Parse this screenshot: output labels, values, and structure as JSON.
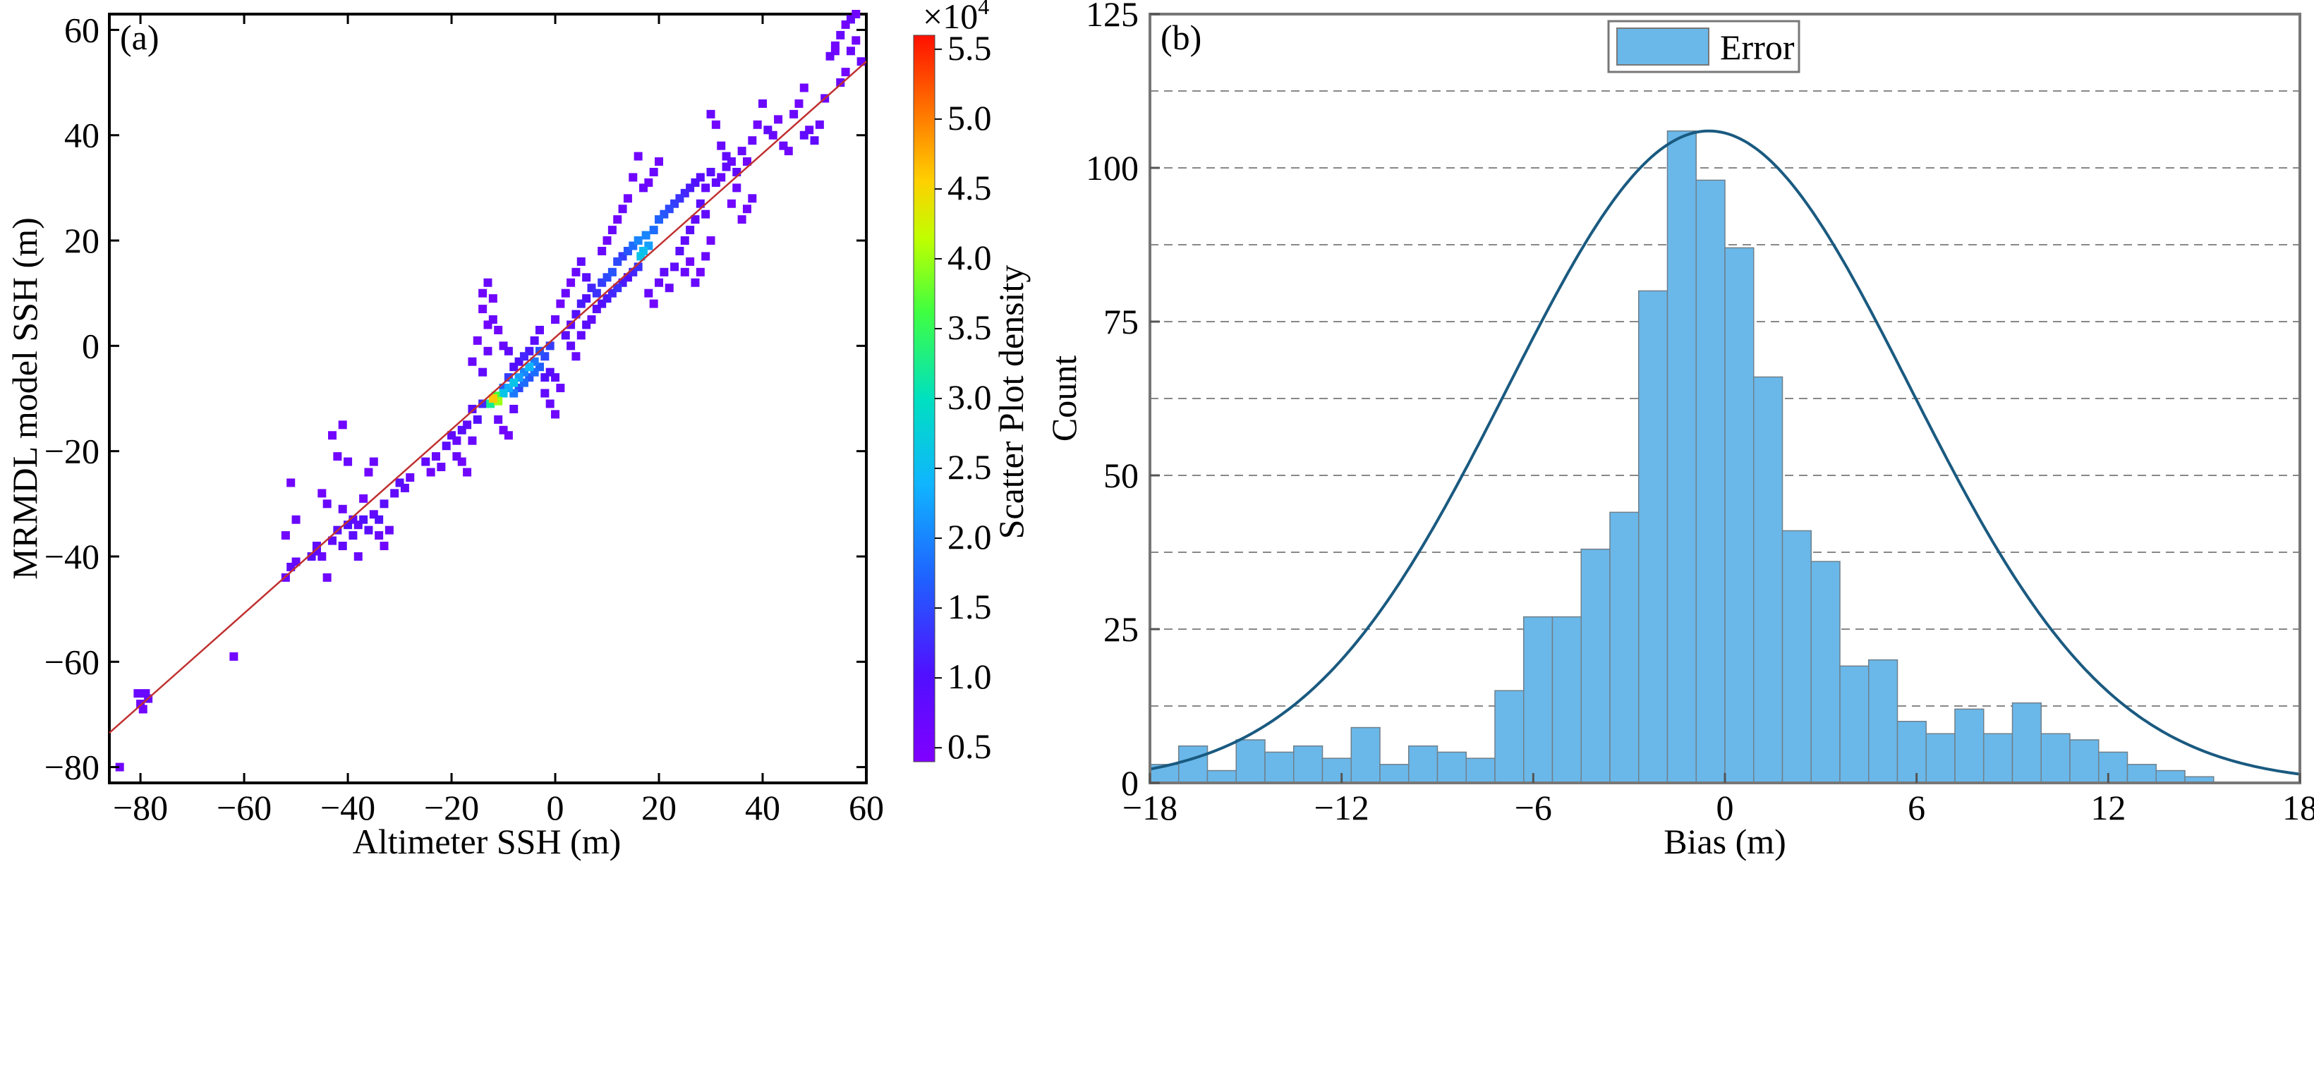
{
  "chart_data": [
    {
      "type": "scatter",
      "panel_label": "(a)",
      "xlabel": "Altimeter SSH (m)",
      "ylabel": "MRMDL model SSH (m)",
      "xlim": [
        -86,
        60
      ],
      "ylim": [
        -83,
        63
      ],
      "xticks": [
        -80,
        -60,
        -40,
        -20,
        0,
        20,
        40,
        60
      ],
      "yticks": [
        60,
        40,
        20,
        0,
        -20,
        -40,
        -60,
        -80
      ],
      "tick_labels_x": [
        "−80",
        "−60",
        "−40",
        "−20",
        "0",
        "20",
        "40",
        "60"
      ],
      "tick_labels_y": [
        "60",
        "40",
        "20",
        "0",
        "−20",
        "−40",
        "−60",
        "−80"
      ],
      "fit_line": {
        "x": [
          -86,
          60
        ],
        "y": [
          -73.5,
          54
        ],
        "color": "#cc2222"
      },
      "colorbar": {
        "label": "Scatter Plot density",
        "exponent_label": "×10",
        "exponent_power": "4",
        "range": [
          0.4,
          5.6
        ],
        "ticks": [
          5.5,
          5.0,
          4.5,
          4.0,
          3.5,
          3.0,
          2.5,
          2.0,
          1.5,
          1.0,
          0.5
        ],
        "tick_labels": [
          "5.5",
          "5.0",
          "4.5",
          "4.0",
          "3.5",
          "3.0",
          "2.5",
          "2.0",
          "1.5",
          "1.0",
          "0.5"
        ]
      },
      "points": [
        [
          -84,
          -80,
          0.6
        ],
        [
          -80.5,
          -66,
          0.7
        ],
        [
          -79.5,
          -69,
          0.6
        ],
        [
          -79,
          -66,
          0.7
        ],
        [
          -80,
          -68,
          0.6
        ],
        [
          -78.5,
          -67,
          0.7
        ],
        [
          -62,
          -59,
          0.6
        ],
        [
          -52,
          -44,
          0.7
        ],
        [
          -51,
          -42,
          0.8
        ],
        [
          -50,
          -41,
          0.7
        ],
        [
          -52,
          -36,
          0.6
        ],
        [
          -51,
          -26,
          0.6
        ],
        [
          -50,
          -33,
          0.7
        ],
        [
          -47,
          -40,
          0.9
        ],
        [
          -46,
          -39,
          0.8
        ],
        [
          -45,
          -40,
          0.7
        ],
        [
          -44,
          -44,
          0.6
        ],
        [
          -43,
          -37,
          0.8
        ],
        [
          -42,
          -35,
          0.9
        ],
        [
          -41,
          -38,
          0.8
        ],
        [
          -40,
          -34,
          1.0
        ],
        [
          -39,
          -36,
          0.9
        ],
        [
          -38,
          -34,
          0.8
        ],
        [
          -37,
          -33,
          1.0
        ],
        [
          -36,
          -35,
          0.9
        ],
        [
          -35,
          -32,
          0.8
        ],
        [
          -34,
          -33,
          1.0
        ],
        [
          -33,
          -30,
          0.9
        ],
        [
          -32,
          -35,
          0.7
        ],
        [
          -31,
          -28,
          0.8
        ],
        [
          -30,
          -26,
          0.9
        ],
        [
          -29,
          -27,
          0.8
        ],
        [
          -28,
          -25,
          0.7
        ],
        [
          -43,
          -17,
          0.6
        ],
        [
          -42,
          -21,
          0.6
        ],
        [
          -41,
          -15,
          0.6
        ],
        [
          -40,
          -22,
          0.7
        ],
        [
          -36,
          -24,
          0.6
        ],
        [
          -35,
          -22,
          0.7
        ],
        [
          -44,
          -30,
          0.7
        ],
        [
          -45,
          -28,
          0.6
        ],
        [
          -34,
          -36,
          0.7
        ],
        [
          -33,
          -38,
          0.6
        ],
        [
          -38,
          -40,
          0.7
        ],
        [
          -37,
          -29,
          0.6
        ],
        [
          -46,
          -38,
          0.8
        ],
        [
          -41,
          -31,
          0.7
        ],
        [
          -39,
          -33,
          0.8
        ],
        [
          -25,
          -22,
          0.8
        ],
        [
          -23,
          -21,
          0.7
        ],
        [
          -21,
          -19,
          0.9
        ],
        [
          -20,
          -17,
          0.8
        ],
        [
          -19,
          -18,
          0.7
        ],
        [
          -18,
          -16,
          0.9
        ],
        [
          -22,
          -23,
          0.7
        ],
        [
          -24,
          -24,
          0.6
        ],
        [
          -17,
          -15,
          0.8
        ],
        [
          -16,
          -12,
          0.9
        ],
        [
          -15,
          -14,
          1.0
        ],
        [
          -14,
          -11,
          1.2
        ],
        [
          -19,
          -21,
          0.7
        ],
        [
          -18,
          -22,
          0.6
        ],
        [
          -17,
          -24,
          0.6
        ],
        [
          -16,
          -18,
          0.7
        ],
        [
          -14,
          10,
          0.6
        ],
        [
          -14,
          7,
          0.6
        ],
        [
          -13,
          12,
          0.7
        ],
        [
          -13,
          4,
          0.6
        ],
        [
          -12,
          9,
          0.6
        ],
        [
          -12,
          5,
          0.7
        ],
        [
          -11,
          3,
          0.6
        ],
        [
          -15,
          1,
          0.6
        ],
        [
          -16,
          -3,
          0.7
        ],
        [
          -14,
          -5,
          0.8
        ],
        [
          -13,
          -1,
          0.7
        ],
        [
          -11,
          -14,
          0.7
        ],
        [
          -10,
          -16,
          0.6
        ],
        [
          -9,
          -17,
          0.6
        ],
        [
          -8,
          -12,
          0.8
        ],
        [
          -12,
          -10,
          4.6
        ],
        [
          -11.5,
          -9.5,
          3.6
        ],
        [
          -11,
          -10.5,
          4.0
        ],
        [
          -12.5,
          -11,
          3.2
        ],
        [
          -10,
          -9,
          2.6
        ],
        [
          -9,
          -8,
          2.3
        ],
        [
          -8,
          -7,
          2.6
        ],
        [
          -7,
          -6,
          2.2
        ],
        [
          -6,
          -5,
          2.0
        ],
        [
          -5,
          -4,
          2.4
        ],
        [
          -4,
          -3,
          1.9
        ],
        [
          -6,
          -7,
          1.8
        ],
        [
          -8,
          -9,
          1.9
        ],
        [
          -10,
          -8,
          1.7
        ],
        [
          -3,
          -1,
          1.6
        ],
        [
          -2,
          -2,
          1.5
        ],
        [
          -1,
          0,
          1.4
        ],
        [
          -4,
          -5,
          1.8
        ],
        [
          -5,
          -6,
          1.6
        ],
        [
          -7,
          -8,
          1.5
        ],
        [
          -3,
          -4,
          1.7
        ],
        [
          -9,
          -6,
          1.4
        ],
        [
          -6,
          -2,
          1.2
        ],
        [
          -7,
          -3,
          1.0
        ],
        [
          -5,
          -1,
          1.1
        ],
        [
          -4,
          1,
          0.9
        ],
        [
          -8,
          -4,
          1.0
        ],
        [
          -9,
          -1,
          0.8
        ],
        [
          -10,
          0,
          0.7
        ],
        [
          -3,
          3,
          0.8
        ],
        [
          -2,
          -6,
          1.0
        ],
        [
          -1,
          -5,
          0.9
        ],
        [
          0,
          -13,
          0.6
        ],
        [
          -1,
          -11,
          0.7
        ],
        [
          -2,
          -9,
          0.8
        ],
        [
          1,
          -8,
          0.7
        ],
        [
          0,
          -6,
          0.8
        ],
        [
          2,
          2,
          0.9
        ],
        [
          3,
          4,
          0.8
        ],
        [
          4,
          6,
          1.0
        ],
        [
          5,
          8,
          1.1
        ],
        [
          6,
          9,
          1.0
        ],
        [
          7,
          11,
          1.2
        ],
        [
          8,
          10,
          1.3
        ],
        [
          9,
          12,
          1.4
        ],
        [
          10,
          13,
          1.5
        ],
        [
          11,
          14,
          1.6
        ],
        [
          12,
          16,
          1.5
        ],
        [
          13,
          17,
          1.4
        ],
        [
          14,
          18,
          1.6
        ],
        [
          15,
          19,
          1.8
        ],
        [
          16,
          20,
          2.0
        ],
        [
          17,
          18,
          2.5
        ],
        [
          18,
          19,
          2.2
        ],
        [
          16.5,
          17,
          2.6
        ],
        [
          17.5,
          21,
          2.0
        ],
        [
          19,
          22,
          1.8
        ],
        [
          20,
          24,
          1.7
        ],
        [
          21,
          25,
          1.6
        ],
        [
          22,
          26,
          1.5
        ],
        [
          23,
          27,
          1.4
        ],
        [
          24,
          28,
          1.3
        ],
        [
          25,
          29,
          1.2
        ],
        [
          26,
          30,
          1.1
        ],
        [
          27,
          31,
          1.0
        ],
        [
          28,
          32,
          0.9
        ],
        [
          29,
          30,
          0.8
        ],
        [
          30,
          33,
          0.9
        ],
        [
          31,
          31,
          0.8
        ],
        [
          32,
          32,
          0.7
        ],
        [
          33,
          34,
          0.8
        ],
        [
          3,
          0,
          0.8
        ],
        [
          4,
          -2,
          0.7
        ],
        [
          5,
          2,
          0.8
        ],
        [
          6,
          4,
          0.9
        ],
        [
          7,
          5,
          0.8
        ],
        [
          8,
          7,
          0.9
        ],
        [
          9,
          8,
          1.0
        ],
        [
          10,
          9,
          1.1
        ],
        [
          11,
          10,
          1.2
        ],
        [
          12,
          11,
          1.3
        ],
        [
          13,
          12,
          1.1
        ],
        [
          14,
          13,
          1.0
        ],
        [
          15,
          14,
          1.2
        ],
        [
          16,
          15,
          1.3
        ],
        [
          0,
          5,
          0.7
        ],
        [
          1,
          8,
          0.6
        ],
        [
          2,
          10,
          0.7
        ],
        [
          3,
          12,
          0.6
        ],
        [
          4,
          14,
          0.7
        ],
        [
          5,
          16,
          0.8
        ],
        [
          6,
          13,
          0.9
        ],
        [
          9,
          18,
          0.7
        ],
        [
          10,
          20,
          0.6
        ],
        [
          11,
          22,
          0.7
        ],
        [
          12,
          24,
          0.6
        ],
        [
          13,
          26,
          0.7
        ],
        [
          14,
          28,
          0.6
        ],
        [
          17,
          30,
          0.7
        ],
        [
          18,
          31,
          0.6
        ],
        [
          19,
          33,
          0.7
        ],
        [
          20,
          35,
          0.6
        ],
        [
          15,
          32,
          0.6
        ],
        [
          16,
          36,
          0.6
        ],
        [
          18,
          10,
          0.7
        ],
        [
          19,
          8,
          0.6
        ],
        [
          20,
          12,
          0.7
        ],
        [
          21,
          14,
          0.8
        ],
        [
          22,
          11,
          0.7
        ],
        [
          23,
          15,
          0.8
        ],
        [
          24,
          18,
          0.9
        ],
        [
          25,
          20,
          0.8
        ],
        [
          26,
          22,
          0.9
        ],
        [
          27,
          24,
          0.8
        ],
        [
          28,
          27,
          0.9
        ],
        [
          29,
          25,
          0.8
        ],
        [
          25,
          14,
          0.7
        ],
        [
          26,
          16,
          0.6
        ],
        [
          27,
          12,
          0.7
        ],
        [
          28,
          14,
          0.6
        ],
        [
          29,
          17,
          0.7
        ],
        [
          30,
          20,
          0.6
        ],
        [
          30,
          44,
          0.7
        ],
        [
          31,
          42,
          0.6
        ],
        [
          32,
          38,
          0.7
        ],
        [
          33,
          36,
          0.8
        ],
        [
          34,
          35,
          0.7
        ],
        [
          35,
          33,
          0.8
        ],
        [
          36,
          37,
          0.7
        ],
        [
          37,
          35,
          0.6
        ],
        [
          38,
          39,
          0.7
        ],
        [
          39,
          42,
          0.6
        ],
        [
          40,
          46,
          0.7
        ],
        [
          41,
          41,
          0.8
        ],
        [
          42,
          40,
          0.7
        ],
        [
          43,
          43,
          0.6
        ],
        [
          44,
          38,
          0.7
        ],
        [
          45,
          37,
          0.6
        ],
        [
          46,
          44,
          0.7
        ],
        [
          47,
          46,
          0.6
        ],
        [
          48,
          40,
          0.8
        ],
        [
          49,
          41,
          0.7
        ],
        [
          50,
          39,
          0.8
        ],
        [
          51,
          42,
          0.7
        ],
        [
          48,
          49,
          0.6
        ],
        [
          52,
          47,
          0.7
        ],
        [
          37,
          26,
          0.6
        ],
        [
          38,
          28,
          0.7
        ],
        [
          36,
          24,
          0.6
        ],
        [
          35,
          30,
          0.7
        ],
        [
          34,
          27,
          0.6
        ],
        [
          53,
          55,
          0.7
        ],
        [
          54,
          56,
          0.6
        ],
        [
          55,
          59,
          0.7
        ],
        [
          56,
          61,
          0.6
        ],
        [
          57,
          62,
          0.7
        ],
        [
          58,
          63,
          0.6
        ],
        [
          57,
          56,
          0.7
        ],
        [
          58,
          58,
          0.6
        ],
        [
          59,
          54,
          0.7
        ],
        [
          56,
          52,
          0.6
        ],
        [
          55,
          50,
          0.7
        ],
        [
          54,
          57,
          0.6
        ]
      ]
    },
    {
      "type": "bar",
      "panel_label": "(b)",
      "xlabel": "Bias (m)",
      "ylabel": "Count",
      "xlim": [
        -18,
        18
      ],
      "ylim": [
        0,
        125
      ],
      "xticks": [
        -18,
        -12,
        -6,
        0,
        6,
        12,
        18
      ],
      "tick_labels_x": [
        "−18",
        "−12",
        "−6",
        "0",
        "6",
        "12",
        "18"
      ],
      "yticks": [
        0,
        25,
        50,
        75,
        100,
        125
      ],
      "tick_labels_y": [
        "0",
        "25",
        "50",
        "75",
        "100",
        "125"
      ],
      "gridlines_y": [
        12.5,
        25,
        37.5,
        50,
        62.5,
        75,
        87.5,
        100,
        112.5
      ],
      "bin_width": 0.9,
      "bin_start": -18,
      "values": [
        3,
        6,
        2,
        7,
        5,
        6,
        4,
        9,
        3,
        6,
        5,
        4,
        15,
        27,
        27,
        38,
        44,
        80,
        106,
        98,
        87,
        66,
        41,
        36,
        19,
        20,
        10,
        8,
        12,
        8,
        13,
        8,
        7,
        5,
        3,
        2,
        1
      ],
      "fit_curve": {
        "peak": 106,
        "mean": -0.5,
        "sigma": 6.3
      },
      "legend": {
        "label": "Error",
        "position": "top-right"
      },
      "bar_color": "#6ab8ea",
      "curve_color": "#1a5a80"
    }
  ]
}
